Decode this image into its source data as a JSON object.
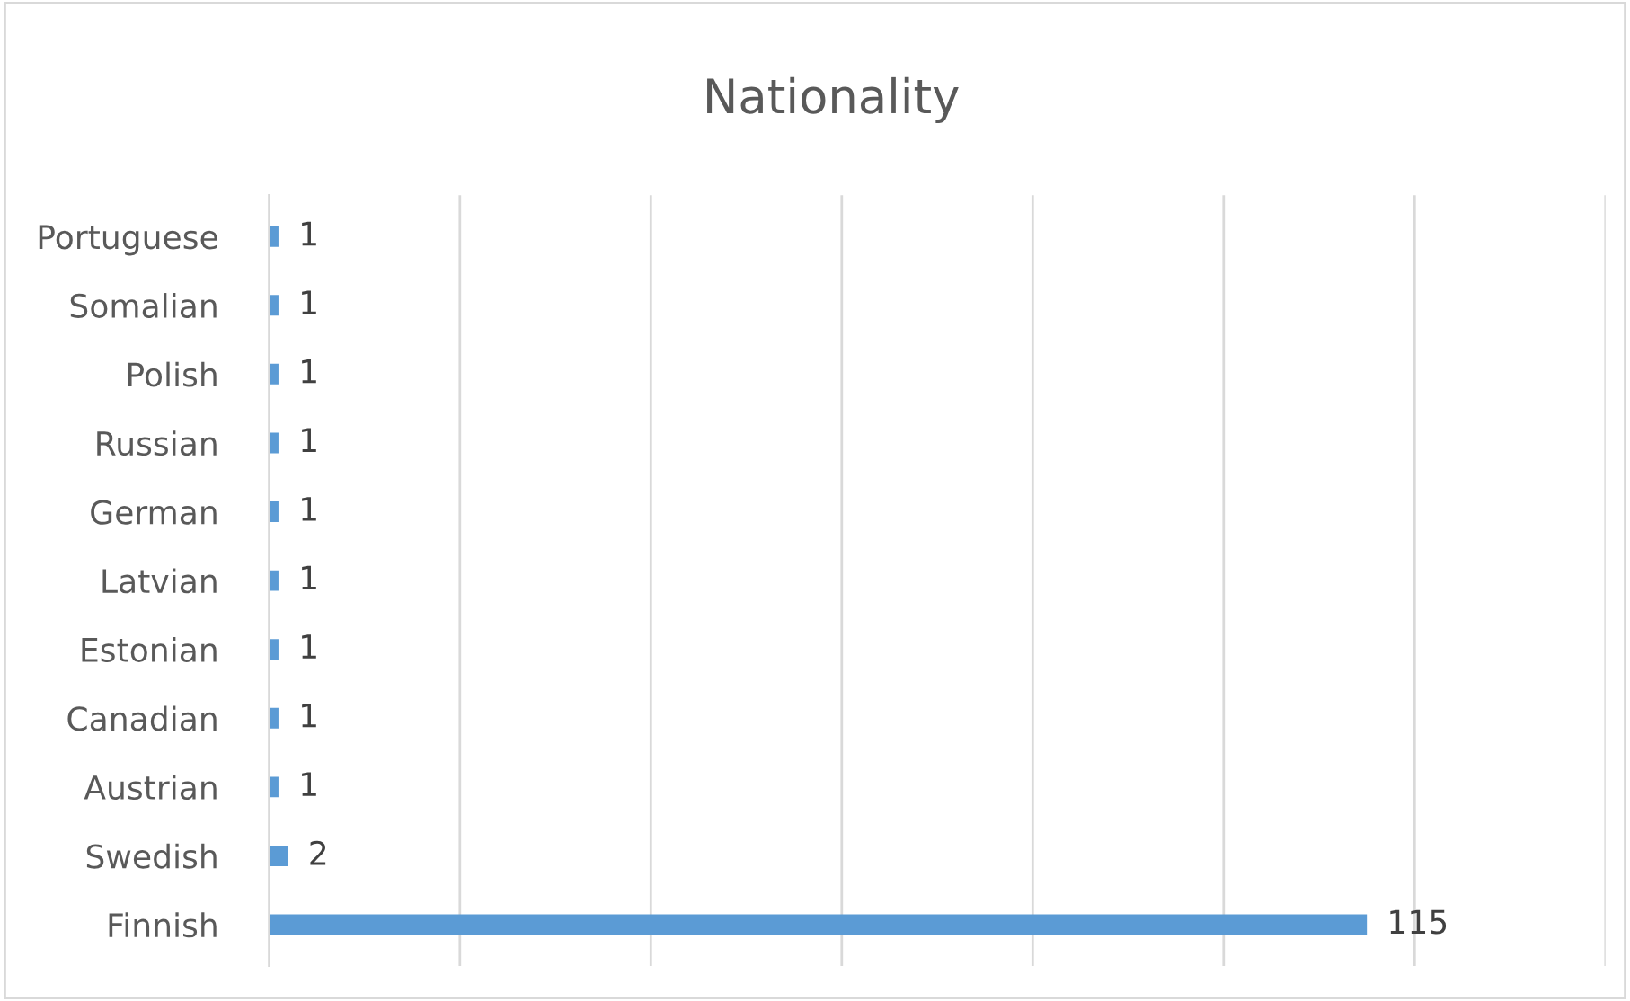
{
  "chart_data": {
    "type": "bar",
    "orientation": "horizontal",
    "title": "Nationality",
    "categories": [
      "Portuguese",
      "Somalian",
      "Polish",
      "Russian",
      "German",
      "Latvian",
      "Estonian",
      "Canadian",
      "Austrian",
      "Swedish",
      "Finnish"
    ],
    "values": [
      1,
      1,
      1,
      1,
      1,
      1,
      1,
      1,
      1,
      2,
      115
    ],
    "color": "#5b9bd5",
    "xlim": [
      0,
      140
    ],
    "xticks": [
      {
        "value": 0,
        "label": null
      },
      {
        "value": 20,
        "label": null
      },
      {
        "value": 40,
        "label": null
      },
      {
        "value": 60,
        "label": null
      },
      {
        "value": 80,
        "label": null
      },
      {
        "value": 100,
        "label": null
      },
      {
        "value": 120,
        "label": null
      },
      {
        "value": 140,
        "label": null
      }
    ],
    "grid": "x",
    "data_labels": true,
    "legend": false
  }
}
